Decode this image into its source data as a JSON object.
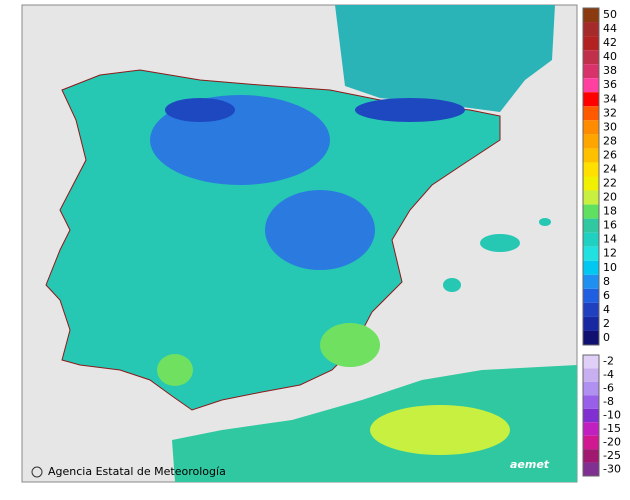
{
  "legend": {
    "positive": [
      {
        "label": "50",
        "color": "#8b3a0f"
      },
      {
        "label": "44",
        "color": "#a52a2a"
      },
      {
        "label": "42",
        "color": "#b22222"
      },
      {
        "label": "40",
        "color": "#c0304a"
      },
      {
        "label": "38",
        "color": "#d8326a"
      },
      {
        "label": "36",
        "color": "#ff40a0"
      },
      {
        "label": "34",
        "color": "#ff0000"
      },
      {
        "label": "32",
        "color": "#ff5a00"
      },
      {
        "label": "30",
        "color": "#ff8c00"
      },
      {
        "label": "28",
        "color": "#ffa500"
      },
      {
        "label": "26",
        "color": "#ffc000"
      },
      {
        "label": "24",
        "color": "#ffe000"
      },
      {
        "label": "22",
        "color": "#f0f000"
      },
      {
        "label": "20",
        "color": "#c8f040"
      },
      {
        "label": "18",
        "color": "#60e060"
      },
      {
        "label": "16",
        "color": "#30c8a0"
      },
      {
        "label": "14",
        "color": "#20d0c0"
      },
      {
        "label": "12",
        "color": "#20e0e0"
      },
      {
        "label": "10",
        "color": "#00c8f0"
      },
      {
        "label": "8",
        "color": "#2090f0"
      },
      {
        "label": "6",
        "color": "#2060e0"
      },
      {
        "label": "4",
        "color": "#2040c0"
      },
      {
        "label": "2",
        "color": "#1828a0"
      },
      {
        "label": "0",
        "color": "#101070"
      }
    ],
    "negative": [
      {
        "label": "-2",
        "color": "#e0d0f8"
      },
      {
        "label": "-4",
        "color": "#c8b0f0"
      },
      {
        "label": "-6",
        "color": "#b090f0"
      },
      {
        "label": "-8",
        "color": "#9860e8"
      },
      {
        "label": "-10",
        "color": "#8030d0"
      },
      {
        "label": "-15",
        "color": "#c020c0"
      },
      {
        "label": "-20",
        "color": "#d01890"
      },
      {
        "label": "-25",
        "color": "#a01870"
      },
      {
        "label": "-30",
        "color": "#803090"
      }
    ]
  },
  "footer": {
    "credit": "Agencia Estatal de Meteorología",
    "logo": "aemet"
  }
}
